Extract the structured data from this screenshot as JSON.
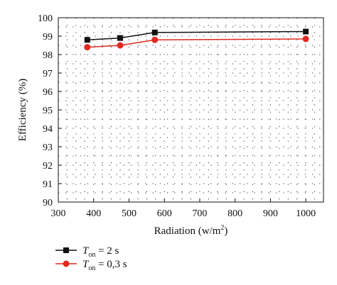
{
  "chart_data": {
    "type": "line",
    "x": [
      382,
      475,
      573,
      1000
    ],
    "series": [
      {
        "name_parts": {
          "var": "T",
          "sub": "on",
          "rest": " = 2 s"
        },
        "values": [
          98.8,
          98.9,
          99.2,
          99.25
        ],
        "color": "#111111",
        "marker": "square"
      },
      {
        "name_parts": {
          "var": "T",
          "sub": "on",
          "rest": " = 0,3 s"
        },
        "values": [
          98.4,
          98.5,
          98.8,
          98.85
        ],
        "color": "#e0291f",
        "marker": "circle"
      }
    ],
    "xlabel": "Radiation (w/m",
    "xlabel_sup": "2",
    "xlabel_end": ")",
    "ylabel": "Efficiency (%)",
    "xlim": [
      300,
      1050
    ],
    "ylim": [
      90,
      100
    ],
    "xticks": [
      "300",
      "400",
      "500",
      "600",
      "700",
      "800",
      "900",
      "1000"
    ],
    "yticks": [
      "90",
      "91",
      "92",
      "93",
      "94",
      "95",
      "96",
      "97",
      "98",
      "99",
      "100"
    ],
    "grid": "dotted",
    "legend_position": "bottom-left"
  }
}
